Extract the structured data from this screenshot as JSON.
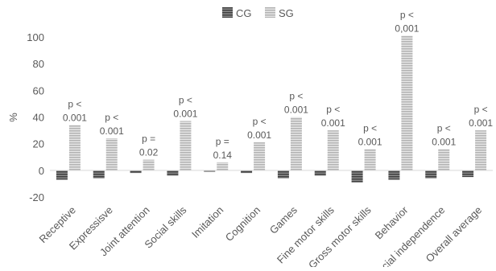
{
  "chart_data": {
    "type": "bar",
    "ylabel": "%",
    "ylim": [
      -20,
      100
    ],
    "yticks": [
      -20,
      0,
      20,
      40,
      60,
      80,
      100
    ],
    "legend_position": "top",
    "grid": false,
    "categories": [
      "Receptive",
      "Expressisve",
      "Joint attention",
      "Social skills",
      "Imitation",
      "Cognition",
      "Games",
      "Fine motor skills",
      "Gross motor skills",
      "Behavior",
      "Social independence",
      "Overall average"
    ],
    "series": [
      {
        "name": "CG",
        "color": "#595959",
        "pattern": "dark-horizontal-stripes",
        "values": [
          -7,
          -6,
          -2,
          -4,
          -1,
          -2,
          -6,
          -4,
          -9,
          -7,
          -6,
          -5
        ]
      },
      {
        "name": "SG",
        "color": "#bfbfbf",
        "pattern": "light-horizontal-stripes",
        "values": [
          34,
          24,
          8,
          37,
          6,
          21,
          40,
          30,
          16,
          101,
          16,
          30
        ]
      }
    ],
    "annotations": [
      {
        "line1": "p <",
        "line2": "0.001"
      },
      {
        "line1": "p <",
        "line2": "0.001"
      },
      {
        "line1": "p =",
        "line2": "0.02"
      },
      {
        "line1": "p <",
        "line2": "0.001"
      },
      {
        "line1": "p =",
        "line2": "0.14"
      },
      {
        "line1": "p <",
        "line2": "0.001"
      },
      {
        "line1": "p <",
        "line2": "0.001"
      },
      {
        "line1": "p <",
        "line2": "0.001"
      },
      {
        "line1": "p <",
        "line2": "0.001"
      },
      {
        "line1": "p <",
        "line2": "0,001"
      },
      {
        "line1": "p <",
        "line2": "0.001"
      },
      {
        "line1": "p <",
        "line2": "0.001"
      }
    ]
  }
}
